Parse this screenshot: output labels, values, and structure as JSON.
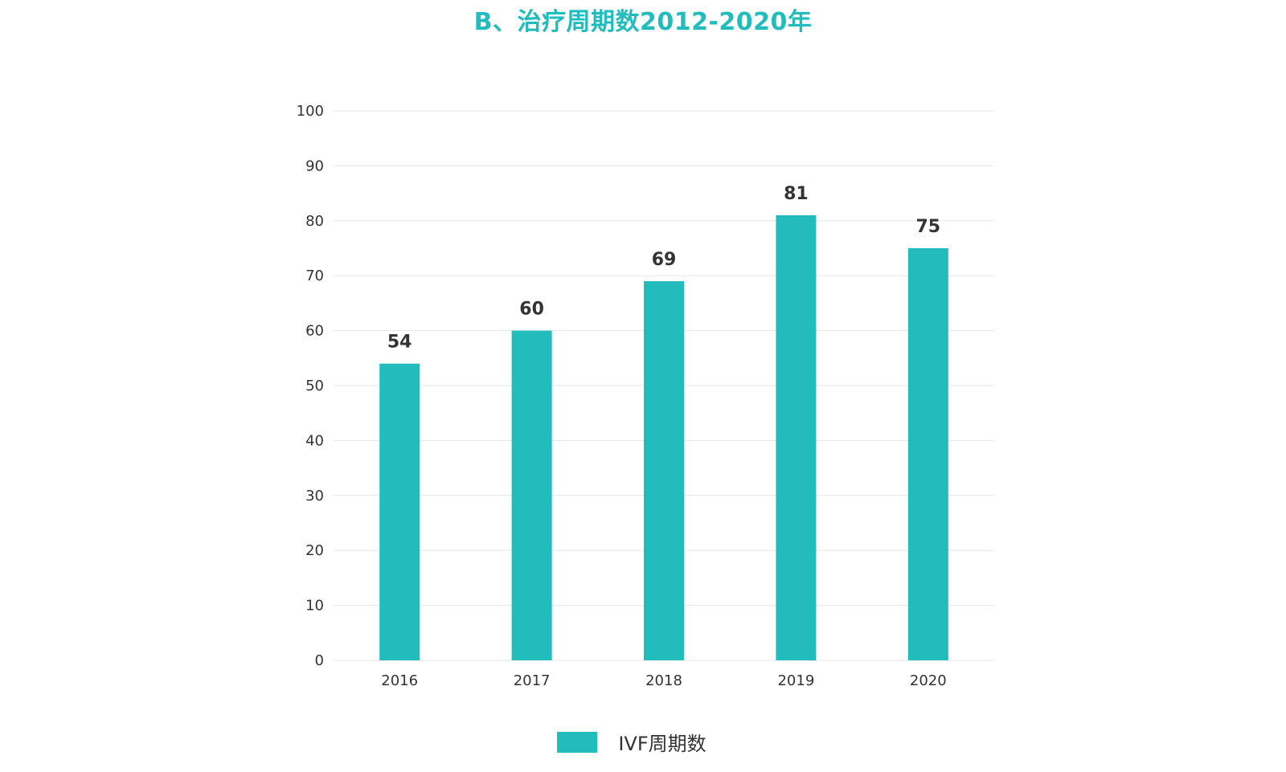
{
  "chart_data": {
    "type": "bar",
    "title": "B、治疗周期数2012-2020年",
    "categories": [
      "2016",
      "2017",
      "2018",
      "2019",
      "2020"
    ],
    "series": [
      {
        "name": "IVF周期数",
        "values": [
          54,
          60,
          69,
          81,
          75
        ],
        "color": "#22bcbc"
      }
    ],
    "data_labels": [
      "54",
      "60",
      "69",
      "81",
      "75"
    ],
    "ylim": [
      0,
      100
    ],
    "yticks": [
      0,
      10,
      20,
      30,
      40,
      50,
      60,
      70,
      80,
      90,
      100
    ],
    "grid": true,
    "legend": "bottom",
    "xlabel": "",
    "ylabel": ""
  },
  "colors": {
    "title": "#22bcbc",
    "bar": "#22bcbc",
    "grid": "#e6e6e6",
    "text": "#333333"
  }
}
